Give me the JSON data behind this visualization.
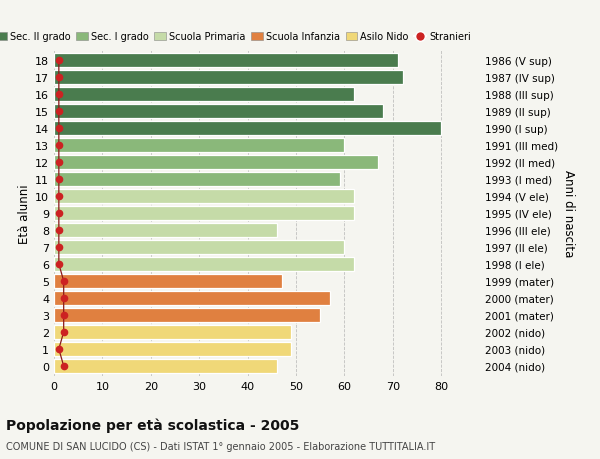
{
  "ages": [
    18,
    17,
    16,
    15,
    14,
    13,
    12,
    11,
    10,
    9,
    8,
    7,
    6,
    5,
    4,
    3,
    2,
    1,
    0
  ],
  "values": [
    71,
    72,
    62,
    68,
    80,
    60,
    67,
    59,
    62,
    62,
    46,
    60,
    62,
    47,
    57,
    55,
    49,
    49,
    46
  ],
  "stranieri_x": [
    1,
    1,
    1,
    1,
    1,
    1,
    1,
    1,
    1,
    1,
    1,
    1,
    1,
    2,
    2,
    2,
    2,
    1,
    2
  ],
  "right_labels": [
    "1986 (V sup)",
    "1987 (IV sup)",
    "1988 (III sup)",
    "1989 (II sup)",
    "1990 (I sup)",
    "1991 (III med)",
    "1992 (II med)",
    "1993 (I med)",
    "1994 (V ele)",
    "1995 (IV ele)",
    "1996 (III ele)",
    "1997 (II ele)",
    "1998 (I ele)",
    "1999 (mater)",
    "2000 (mater)",
    "2001 (mater)",
    "2002 (nido)",
    "2003 (nido)",
    "2004 (nido)"
  ],
  "bar_colors": [
    "#4a7c4e",
    "#4a7c4e",
    "#4a7c4e",
    "#4a7c4e",
    "#4a7c4e",
    "#8ab87a",
    "#8ab87a",
    "#8ab87a",
    "#c5dba8",
    "#c5dba8",
    "#c5dba8",
    "#c5dba8",
    "#c5dba8",
    "#e08040",
    "#e08040",
    "#e08040",
    "#f0d878",
    "#f0d878",
    "#f0d878"
  ],
  "legend_labels": [
    "Sec. II grado",
    "Sec. I grado",
    "Scuola Primaria",
    "Scuola Infanzia",
    "Asilo Nido",
    "Stranieri"
  ],
  "legend_colors": [
    "#4a7c4e",
    "#8ab87a",
    "#c5dba8",
    "#e08040",
    "#f0d878",
    "#cc2222"
  ],
  "ylabel": "Età alunni",
  "right_ylabel": "Anni di nascita",
  "title": "Popolazione per età scolastica - 2005",
  "subtitle": "COMUNE DI SAN LUCIDO (CS) - Dati ISTAT 1° gennaio 2005 - Elaborazione TUTTITALIA.IT",
  "xlim": [
    0,
    88
  ],
  "xticks": [
    0,
    10,
    20,
    30,
    40,
    50,
    60,
    70,
    80
  ],
  "background_color": "#f5f5f0",
  "bar_edge_color": "#ffffff"
}
